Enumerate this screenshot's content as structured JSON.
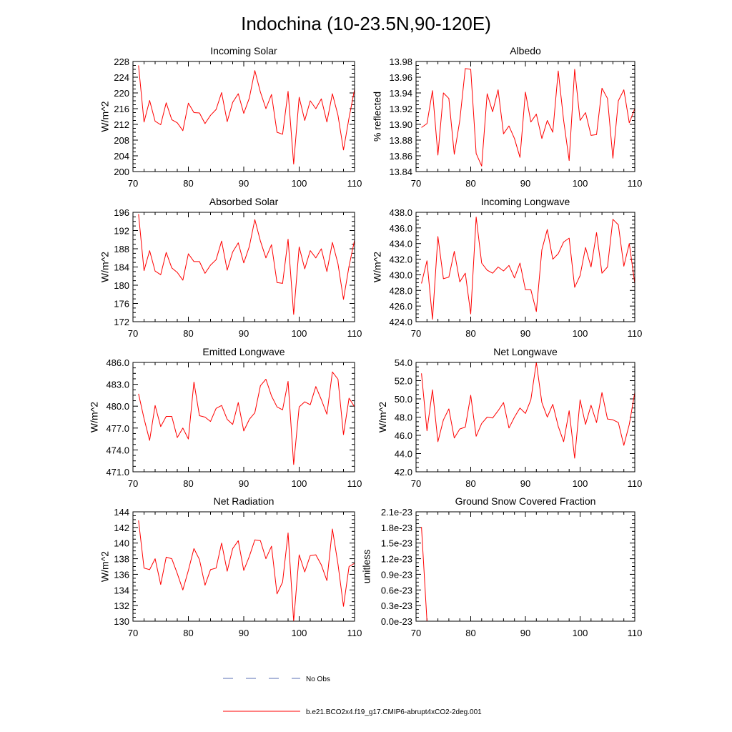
{
  "title": "Indochina (10-23.5N,90-120E)",
  "legend": [
    {
      "label": "No Obs",
      "color": "#5a6fb4",
      "style": "dashed"
    },
    {
      "label": "b.e21.BCO2x4.f19_g17.CMIP6-abrupt4xCO2-2deg.001",
      "color": "#ff0000",
      "style": "solid"
    }
  ],
  "chart_data": [
    {
      "type": "line",
      "title": "Incoming Solar",
      "ylabel": "W/m^2",
      "xlim": [
        70,
        110
      ],
      "xticks": [
        70,
        80,
        90,
        100,
        110
      ],
      "xticklabels": [
        "70",
        "80",
        "90",
        "100",
        "110"
      ],
      "ylim": [
        200,
        228
      ],
      "yticks": [
        200,
        204,
        208,
        212,
        216,
        220,
        224,
        228
      ],
      "yticklabels": [
        "200",
        "204",
        "208",
        "212",
        "216",
        "220",
        "224",
        "228"
      ],
      "series": [
        {
          "name": "b.e21.BCO2x4.f19_g17.CMIP6-abrupt4xCO2-2deg.001",
          "x": [
            71,
            72,
            73,
            74,
            75,
            76,
            77,
            78,
            79,
            80,
            81,
            82,
            83,
            84,
            85,
            86,
            87,
            88,
            89,
            90,
            91,
            92,
            93,
            94,
            95,
            96,
            97,
            98,
            99,
            100,
            101,
            102,
            103,
            104,
            105,
            106,
            107,
            108,
            109,
            110
          ],
          "values": [
            227.0,
            212.6,
            218.1,
            212.8,
            211.9,
            217.5,
            213.2,
            212.4,
            210.4,
            217.4,
            215.0,
            214.9,
            212.2,
            214.3,
            215.8,
            220.1,
            212.7,
            217.6,
            219.8,
            214.8,
            218.7,
            225.7,
            220.2,
            216.0,
            219.6,
            210.0,
            209.5,
            220.4,
            201.9,
            218.9,
            213.0,
            218.0,
            216.0,
            218.5,
            212.6,
            219.8,
            214.3,
            205.5,
            213.7,
            220.9
          ]
        }
      ]
    },
    {
      "type": "line",
      "title": "Albedo",
      "ylabel": "% reflected",
      "xlim": [
        70,
        110
      ],
      "xticks": [
        70,
        80,
        90,
        100,
        110
      ],
      "xticklabels": [
        "70",
        "80",
        "90",
        "100",
        "110"
      ],
      "ylim": [
        13.84,
        13.98
      ],
      "yticks": [
        13.84,
        13.86,
        13.88,
        13.9,
        13.92,
        13.94,
        13.96,
        13.98
      ],
      "yticklabels": [
        "13.84",
        "13.86",
        "13.88",
        "13.90",
        "13.92",
        "13.94",
        "13.96",
        "13.98"
      ],
      "series": [
        {
          "name": "b.e21.BCO2x4.f19_g17.CMIP6-abrupt4xCO2-2deg.001",
          "x": [
            71,
            72,
            73,
            74,
            75,
            76,
            77,
            78,
            79,
            80,
            81,
            82,
            83,
            84,
            85,
            86,
            87,
            88,
            89,
            90,
            91,
            92,
            93,
            94,
            95,
            96,
            97,
            98,
            99,
            100,
            101,
            102,
            103,
            104,
            105,
            106,
            107,
            108,
            109,
            110
          ],
          "values": [
            13.896,
            13.901,
            13.943,
            13.861,
            13.94,
            13.933,
            13.862,
            13.905,
            13.971,
            13.97,
            13.863,
            13.847,
            13.939,
            13.916,
            13.944,
            13.888,
            13.898,
            13.882,
            13.858,
            13.941,
            13.903,
            13.913,
            13.882,
            13.905,
            13.89,
            13.968,
            13.905,
            13.854,
            13.97,
            13.905,
            13.915,
            13.886,
            13.887,
            13.946,
            13.933,
            13.857,
            13.93,
            13.944,
            13.902,
            13.92
          ]
        }
      ]
    },
    {
      "type": "line",
      "title": "Absorbed Solar",
      "ylabel": "W/m^2",
      "xlim": [
        70,
        110
      ],
      "xticks": [
        70,
        80,
        90,
        100,
        110
      ],
      "xticklabels": [
        "70",
        "80",
        "90",
        "100",
        "110"
      ],
      "ylim": [
        172,
        196
      ],
      "yticks": [
        172,
        176,
        180,
        184,
        188,
        192,
        196
      ],
      "yticklabels": [
        "172",
        "176",
        "180",
        "184",
        "188",
        "192",
        "196"
      ],
      "series": [
        {
          "name": "b.e21.BCO2x4.f19_g17.CMIP6-abrupt4xCO2-2deg.001",
          "x": [
            71,
            72,
            73,
            74,
            75,
            76,
            77,
            78,
            79,
            80,
            81,
            82,
            83,
            84,
            85,
            86,
            87,
            88,
            89,
            90,
            91,
            92,
            93,
            94,
            95,
            96,
            97,
            98,
            99,
            100,
            101,
            102,
            103,
            104,
            105,
            106,
            107,
            108,
            109,
            110
          ],
          "values": [
            195.6,
            183.2,
            187.6,
            183.1,
            182.3,
            187.2,
            183.8,
            182.8,
            181.1,
            186.9,
            185.2,
            185.2,
            182.6,
            184.4,
            185.6,
            189.7,
            183.3,
            187.3,
            189.3,
            184.9,
            188.5,
            194.4,
            189.7,
            186.0,
            188.9,
            180.6,
            180.4,
            190.1,
            173.6,
            188.4,
            183.6,
            187.6,
            186.0,
            188.0,
            183.0,
            189.4,
            184.7,
            176.9,
            184.2,
            189.9
          ]
        }
      ]
    },
    {
      "type": "line",
      "title": "Incoming Longwave",
      "ylabel": "W/m^2",
      "xlim": [
        70,
        110
      ],
      "xticks": [
        70,
        80,
        90,
        100,
        110
      ],
      "xticklabels": [
        "70",
        "80",
        "90",
        "100",
        "110"
      ],
      "ylim": [
        424.0,
        438.0
      ],
      "yticks": [
        424.0,
        426.0,
        428.0,
        430.0,
        432.0,
        434.0,
        436.0,
        438.0
      ],
      "yticklabels": [
        "424.0",
        "426.0",
        "428.0",
        "430.0",
        "432.0",
        "434.0",
        "436.0",
        "438.0"
      ],
      "series": [
        {
          "name": "b.e21.BCO2x4.f19_g17.CMIP6-abrupt4xCO2-2deg.001",
          "x": [
            71,
            72,
            73,
            74,
            75,
            76,
            77,
            78,
            79,
            80,
            81,
            82,
            83,
            84,
            85,
            86,
            87,
            88,
            89,
            90,
            91,
            92,
            93,
            94,
            95,
            96,
            97,
            98,
            99,
            100,
            101,
            102,
            103,
            104,
            105,
            106,
            107,
            108,
            109,
            110
          ],
          "values": [
            428.9,
            431.8,
            424.3,
            434.9,
            429.5,
            429.7,
            433.0,
            429.1,
            430.2,
            425.0,
            437.4,
            431.5,
            430.6,
            430.2,
            431.0,
            430.5,
            431.2,
            429.6,
            431.5,
            428.1,
            428.1,
            425.3,
            433.2,
            435.8,
            432.0,
            432.7,
            434.2,
            434.7,
            428.4,
            429.9,
            433.5,
            431.0,
            435.4,
            430.2,
            431.0,
            437.1,
            436.4,
            431.1,
            434.0,
            428.9
          ]
        }
      ]
    },
    {
      "type": "line",
      "title": "Emitted Longwave",
      "ylabel": "W/m^2",
      "xlim": [
        70,
        110
      ],
      "xticks": [
        70,
        80,
        90,
        100,
        110
      ],
      "xticklabels": [
        "70",
        "80",
        "90",
        "100",
        "110"
      ],
      "ylim": [
        471.0,
        486.0
      ],
      "yticks": [
        471.0,
        474.0,
        477.0,
        480.0,
        483.0,
        486.0
      ],
      "yticklabels": [
        "471.0",
        "474.0",
        "477.0",
        "480.0",
        "483.0",
        "486.0"
      ],
      "series": [
        {
          "name": "b.e21.BCO2x4.f19_g17.CMIP6-abrupt4xCO2-2deg.001",
          "x": [
            71,
            72,
            73,
            74,
            75,
            76,
            77,
            78,
            79,
            80,
            81,
            82,
            83,
            84,
            85,
            86,
            87,
            88,
            89,
            90,
            91,
            92,
            93,
            94,
            95,
            96,
            97,
            98,
            99,
            100,
            101,
            102,
            103,
            104,
            105,
            106,
            107,
            108,
            109,
            110
          ],
          "values": [
            481.7,
            478.3,
            475.3,
            480.1,
            477.2,
            478.6,
            478.6,
            475.7,
            477.0,
            475.5,
            483.3,
            478.7,
            478.5,
            477.9,
            479.7,
            480.1,
            478.2,
            477.5,
            480.5,
            476.6,
            478.2,
            479.1,
            482.8,
            483.7,
            481.4,
            479.9,
            479.5,
            483.4,
            472.0,
            479.9,
            480.6,
            480.2,
            482.7,
            480.9,
            478.9,
            484.7,
            483.7,
            476.1,
            481.1,
            479.9
          ]
        }
      ]
    },
    {
      "type": "line",
      "title": "Net Longwave",
      "ylabel": "W/m^2",
      "xlim": [
        70,
        110
      ],
      "xticks": [
        70,
        80,
        90,
        100,
        110
      ],
      "xticklabels": [
        "70",
        "80",
        "90",
        "100",
        "110"
      ],
      "ylim": [
        42.0,
        54.0
      ],
      "yticks": [
        42.0,
        44.0,
        46.0,
        48.0,
        50.0,
        52.0,
        54.0
      ],
      "yticklabels": [
        "42.0",
        "44.0",
        "46.0",
        "48.0",
        "50.0",
        "52.0",
        "54.0"
      ],
      "series": [
        {
          "name": "b.e21.BCO2x4.f19_g17.CMIP6-abrupt4xCO2-2deg.001",
          "x": [
            71,
            72,
            73,
            74,
            75,
            76,
            77,
            78,
            79,
            80,
            81,
            82,
            83,
            84,
            85,
            86,
            87,
            88,
            89,
            90,
            91,
            92,
            93,
            94,
            95,
            96,
            97,
            98,
            99,
            100,
            101,
            102,
            103,
            104,
            105,
            106,
            107,
            108,
            109,
            110
          ],
          "values": [
            52.8,
            46.5,
            51.0,
            45.3,
            47.7,
            48.9,
            45.7,
            46.7,
            46.9,
            50.4,
            45.9,
            47.3,
            48.0,
            47.9,
            48.7,
            49.6,
            46.8,
            48.0,
            49.0,
            48.4,
            49.9,
            54.0,
            49.6,
            48.0,
            49.4,
            47.0,
            45.3,
            48.7,
            43.5,
            49.9,
            47.2,
            49.3,
            47.4,
            50.7,
            47.8,
            47.7,
            47.4,
            44.9,
            47.2,
            50.7
          ]
        }
      ]
    },
    {
      "type": "line",
      "title": "Net Radiation",
      "ylabel": "W/m^2",
      "xlim": [
        70,
        110
      ],
      "xticks": [
        70,
        80,
        90,
        100,
        110
      ],
      "xticklabels": [
        "70",
        "80",
        "90",
        "100",
        "110"
      ],
      "ylim": [
        130,
        144
      ],
      "yticks": [
        130,
        132,
        134,
        136,
        138,
        140,
        142,
        144
      ],
      "yticklabels": [
        "130",
        "132",
        "134",
        "136",
        "138",
        "140",
        "142",
        "144"
      ],
      "series": [
        {
          "name": "b.e21.BCO2x4.f19_g17.CMIP6-abrupt4xCO2-2deg.001",
          "x": [
            71,
            72,
            73,
            74,
            75,
            76,
            77,
            78,
            79,
            80,
            81,
            82,
            83,
            84,
            85,
            86,
            87,
            88,
            89,
            90,
            91,
            92,
            93,
            94,
            95,
            96,
            97,
            98,
            99,
            100,
            101,
            102,
            103,
            104,
            105,
            106,
            107,
            108,
            109,
            110
          ],
          "values": [
            142.9,
            136.8,
            136.6,
            138.0,
            134.7,
            138.2,
            138.0,
            136.1,
            134.0,
            136.5,
            139.3,
            137.9,
            134.6,
            136.6,
            136.8,
            140.0,
            136.4,
            139.3,
            140.3,
            136.5,
            138.3,
            140.4,
            140.3,
            138.0,
            139.6,
            133.5,
            135.0,
            141.3,
            130.0,
            138.5,
            136.3,
            138.4,
            138.5,
            137.2,
            135.2,
            141.8,
            137.3,
            131.9,
            137.0,
            137.4
          ]
        }
      ]
    },
    {
      "type": "line",
      "title": "Ground Snow Covered Fraction",
      "ylabel": "unitless",
      "xlim": [
        70,
        110
      ],
      "xticks": [
        70,
        80,
        90,
        100,
        110
      ],
      "xticklabels": [
        "70",
        "80",
        "90",
        "100",
        "110"
      ],
      "ylim": [
        0,
        2.1
      ],
      "yticks": [
        0,
        0.3,
        0.6,
        0.9,
        1.2,
        1.5,
        1.8,
        2.1
      ],
      "yticklabels": [
        "0.0e-23",
        "0.3e-23",
        "0.6e-23",
        "0.9e-23",
        "1.2e-23",
        "1.5e-23",
        "1.8e-23",
        "2.1e-23"
      ],
      "series": [
        {
          "name": "b.e21.BCO2x4.f19_g17.CMIP6-abrupt4xCO2-2deg.001",
          "x": [
            71,
            72,
            73,
            74,
            75,
            76,
            77,
            78,
            79,
            80,
            81,
            82,
            83,
            84,
            85,
            86,
            87,
            88,
            89,
            90,
            91,
            92,
            93,
            94,
            95,
            96,
            97,
            98,
            99,
            100,
            101,
            102,
            103,
            104,
            105,
            106,
            107,
            108,
            109,
            110
          ],
          "values": [
            1.81,
            0,
            0,
            0,
            0,
            0,
            0,
            0,
            0,
            0,
            0,
            0,
            0,
            0,
            0,
            0,
            0,
            0,
            0,
            0,
            0,
            0,
            0,
            0,
            0,
            0,
            0,
            0,
            0,
            0,
            0,
            0,
            0,
            0,
            0,
            0,
            0,
            0,
            0,
            0
          ]
        }
      ]
    }
  ]
}
